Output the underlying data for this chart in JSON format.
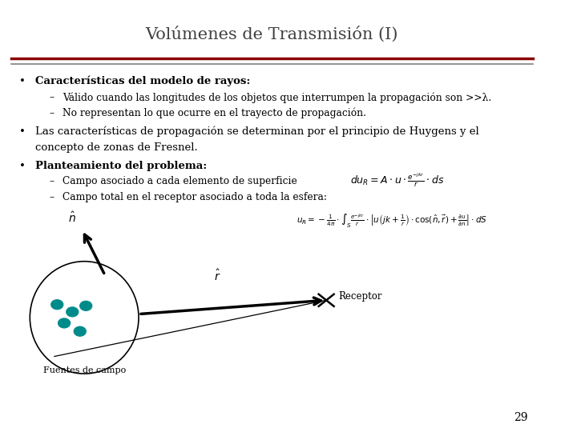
{
  "title": "Volúmenes de Transmisión (I)",
  "bg_color": "#ffffff",
  "title_color": "#404040",
  "text_color": "#000000",
  "rule_color1": "#8B0000",
  "rule_color2": "#808080",
  "bullet1": "Características del modelo de rayos:",
  "sub1a": "Válido cuando las longitudes de los objetos que interrumpen la propagación son >>λ.",
  "sub1b": "No representan lo que ocurre en el trayecto de propagación.",
  "bullet2_line1": "Las características de propagación se determinan por el principio de Huygens y el",
  "bullet2_line2": "concepto de zonas de Fresnel.",
  "bullet3": "Planteamiento del problema:",
  "sub3a": "Campo asociado a cada elemento de superficie",
  "sub3b": "Campo total en el receptor asociado a toda la esfera:",
  "eq1": "$du_R = A \\cdot u \\cdot \\frac{e^{-jkr}}{r} \\cdot ds$",
  "eq2": "$u_R = -\\frac{1}{4\\pi} \\cdot \\int_S \\frac{e^{-jkr}}{r} \\cdot \\left[ u\\left(jk+\\frac{1}{r}\\right) \\cdot \\cos(\\hat{n},\\vec{r}) + \\frac{\\partial u}{\\partial n} \\right] \\cdot dS$",
  "label_receptor": "Receptor",
  "label_fuentes": "Fuentes de campo",
  "page_number": "29",
  "teal_color": "#008B8B"
}
